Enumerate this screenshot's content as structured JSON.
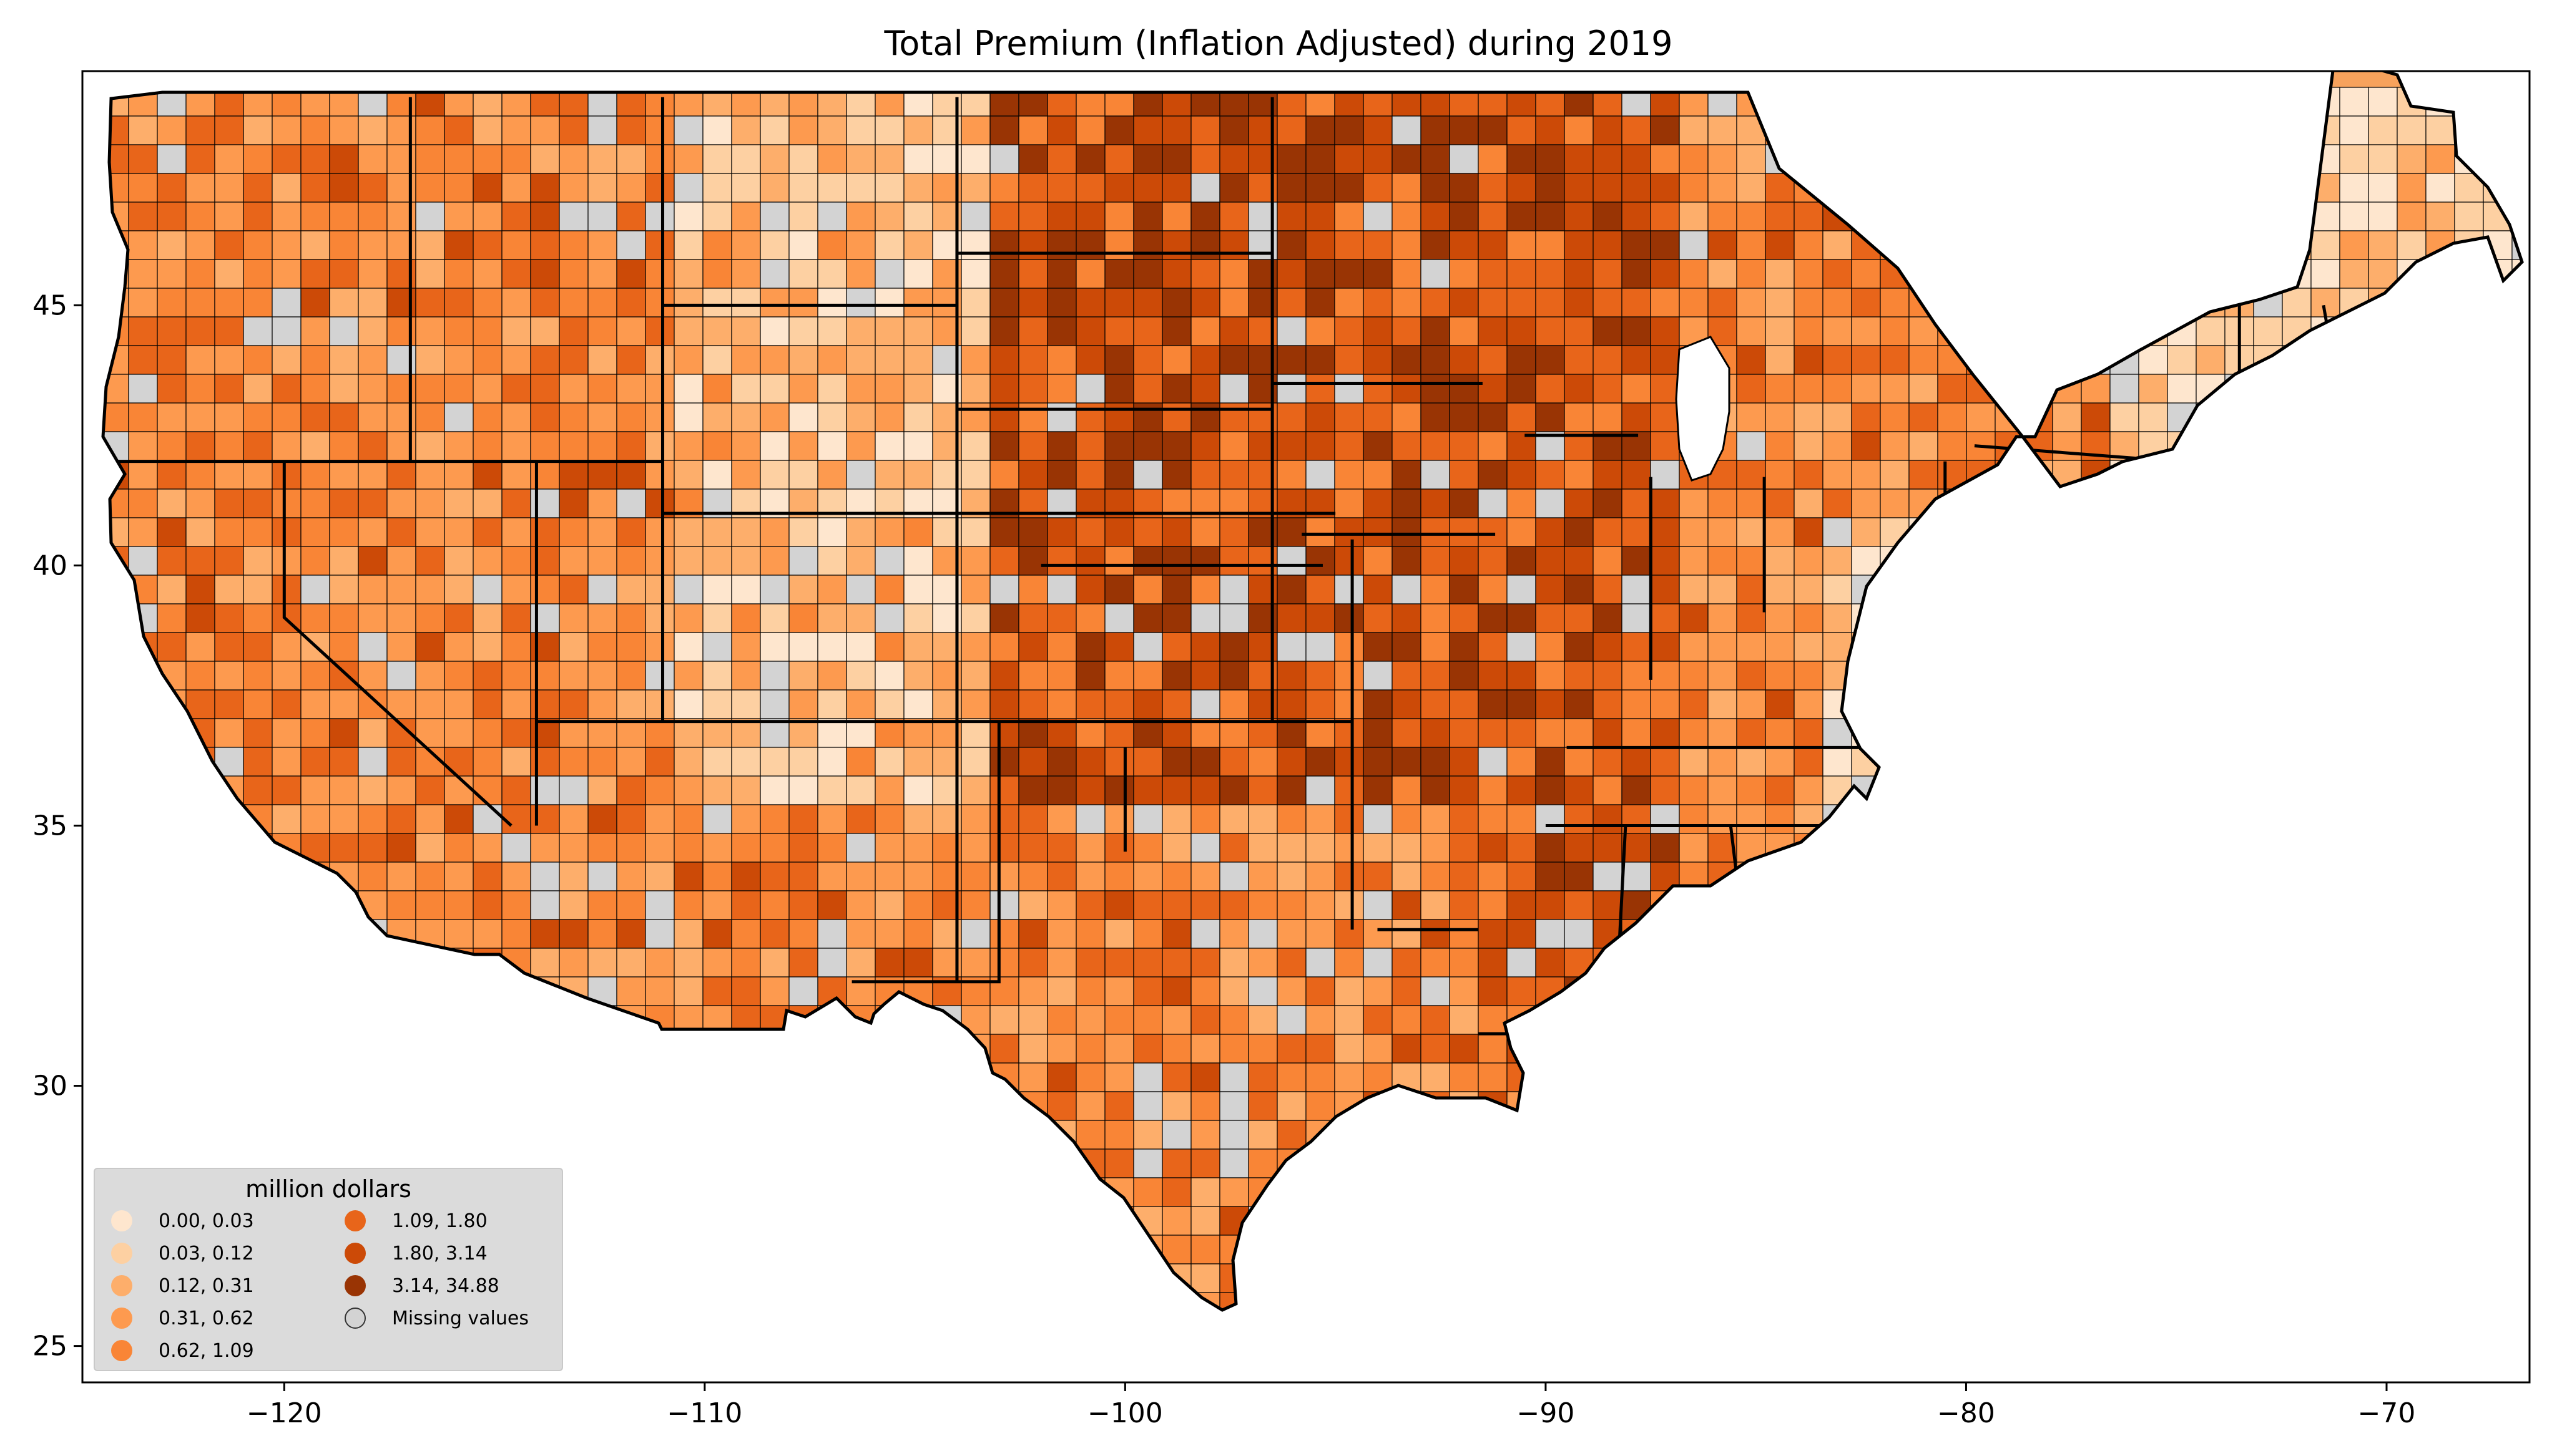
{
  "title": "Total  Premium  (Inflation Adjusted) during 2019",
  "axes": {
    "x_ticks": [
      "−120",
      "−110",
      "−100",
      "−90",
      "−80",
      "−70"
    ],
    "x_tick_values": [
      -120,
      -110,
      -100,
      -90,
      -80,
      -70
    ],
    "y_ticks": [
      "25",
      "30",
      "35",
      "40",
      "45"
    ],
    "y_tick_values": [
      25,
      30,
      35,
      40,
      45
    ],
    "xlim": [
      -124.8,
      -66.6
    ],
    "ylim": [
      24.3,
      49.5
    ]
  },
  "legend": {
    "title": "million dollars",
    "entries": [
      {
        "label": "0.00,  0.03",
        "color": "#fee6ce"
      },
      {
        "label": "0.03,  0.12",
        "color": "#fdd0a2"
      },
      {
        "label": "0.12,  0.31",
        "color": "#fdae6b"
      },
      {
        "label": "0.31,  0.62",
        "color": "#fd9a4f"
      },
      {
        "label": "0.62,  1.09",
        "color": "#f98536"
      },
      {
        "label": "1.09,  1.80",
        "color": "#e8651a"
      },
      {
        "label": "1.80,  3.14",
        "color": "#cc4a07"
      },
      {
        "label": "3.14, 34.88",
        "color": "#993404"
      },
      {
        "label": "Missing values",
        "color": "#d3d3d3"
      }
    ]
  },
  "colors": {
    "missing": "#d3d3d3",
    "border": "#000000",
    "background": "#ffffff"
  }
}
